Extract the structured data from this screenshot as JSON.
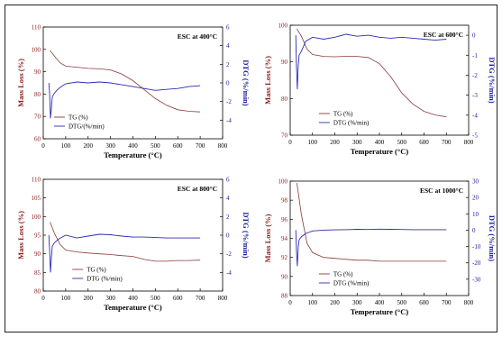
{
  "colors": {
    "tg": "#8b3a3a",
    "dtg": "#2b2bb8",
    "axis_left": "#8b1a1a",
    "axis_right": "#1a1aa0",
    "frame": "#000000"
  },
  "chart_data": [
    {
      "type": "line",
      "annotation": "ESC at 400°C",
      "xlabel": "Temperature (°C)",
      "ylabel": "Mass Loss (%)",
      "y2label": "DTG (%/min)",
      "xlim": [
        0,
        800
      ],
      "xticks": [
        0,
        100,
        200,
        300,
        400,
        500,
        600,
        700,
        800
      ],
      "ylim": [
        60,
        110
      ],
      "yticks": [
        60,
        70,
        80,
        90,
        100,
        110
      ],
      "y2lim": [
        -6,
        6
      ],
      "y2ticks": [
        -4,
        -2,
        0,
        2,
        4,
        6
      ],
      "legend": {
        "position": "bottom-left",
        "entries": [
          "TG (%)",
          "DTG/(%/min)"
        ]
      },
      "series": [
        {
          "name": "TG (%)",
          "axis": "left",
          "x": [
            30,
            50,
            75,
            100,
            150,
            200,
            250,
            300,
            350,
            400,
            450,
            500,
            550,
            600,
            650,
            700
          ],
          "y": [
            99.5,
            97,
            94,
            92.5,
            92,
            91.5,
            91.3,
            90.8,
            89,
            86,
            82,
            78,
            75,
            73,
            72.3,
            72
          ]
        },
        {
          "name": "DTG/(%/min)",
          "axis": "right",
          "x": [
            25,
            28,
            32,
            36,
            40,
            50,
            60,
            80,
            100,
            150,
            200,
            250,
            300,
            350,
            400,
            450,
            500,
            550,
            600,
            650,
            700
          ],
          "y": [
            0,
            -1,
            -3.8,
            -2.8,
            -1.5,
            -1.1,
            -0.8,
            -0.4,
            -0.1,
            0.1,
            0,
            0.1,
            0,
            -0.2,
            -0.4,
            -0.6,
            -0.8,
            -0.7,
            -0.6,
            -0.4,
            -0.3
          ]
        }
      ]
    },
    {
      "type": "line",
      "annotation": "ESC at 600°C",
      "xlabel": "Temperature (°C)",
      "ylabel": "Mass Loss (%)",
      "y2label": "DTG (%/min)",
      "xlim": [
        0,
        800
      ],
      "xticks": [
        0,
        100,
        200,
        300,
        400,
        500,
        600,
        700,
        800
      ],
      "ylim": [
        70,
        100
      ],
      "yticks": [
        70,
        80,
        90,
        100
      ],
      "y2lim": [
        -5,
        0.5
      ],
      "y2ticks": [
        -5,
        -4,
        -3,
        -2,
        -1,
        0
      ],
      "legend": {
        "position": "bottom-center",
        "entries": [
          "TG (%)",
          "DTG (%/min)"
        ]
      },
      "series": [
        {
          "name": "TG (%)",
          "axis": "left",
          "x": [
            30,
            50,
            75,
            100,
            150,
            200,
            250,
            300,
            350,
            400,
            450,
            500,
            550,
            600,
            650,
            700
          ],
          "y": [
            99,
            97,
            93.5,
            92,
            91.5,
            91.4,
            91.5,
            91.5,
            91.2,
            89.5,
            86,
            81.5,
            78.5,
            76.5,
            75.5,
            75
          ]
        },
        {
          "name": "DTG (%/min)",
          "axis": "right",
          "x": [
            25,
            28,
            32,
            36,
            40,
            50,
            70,
            100,
            150,
            200,
            250,
            300,
            350,
            400,
            450,
            500,
            550,
            600,
            650,
            700
          ],
          "y": [
            0,
            -1.5,
            -2.7,
            -1.5,
            -1,
            -0.8,
            -0.3,
            -0.1,
            -0.2,
            -0.1,
            0.05,
            -0.05,
            0,
            -0.1,
            -0.15,
            -0.1,
            -0.15,
            -0.2,
            -0.25,
            -0.2
          ]
        }
      ]
    },
    {
      "type": "line",
      "annotation": "ESC at 800°C",
      "xlabel": "Temperature (°C)",
      "ylabel": "Mass Loss (%)",
      "y2label": "DTG (%/min)",
      "xlim": [
        0,
        800
      ],
      "xticks": [
        0,
        100,
        200,
        300,
        400,
        500,
        600,
        700,
        800
      ],
      "ylim": [
        80,
        110
      ],
      "yticks": [
        80,
        85,
        90,
        95,
        100,
        105,
        110
      ],
      "y2lim": [
        -6,
        6
      ],
      "y2ticks": [
        -4,
        -2,
        0,
        2,
        4,
        6
      ],
      "legend": {
        "position": "bottom-center",
        "entries": [
          "TG (%)",
          "DTG (%/min)"
        ]
      },
      "series": [
        {
          "name": "TG (%)",
          "axis": "left",
          "x": [
            30,
            50,
            75,
            100,
            150,
            200,
            250,
            300,
            350,
            400,
            450,
            500,
            550,
            600,
            650,
            700
          ],
          "y": [
            98.5,
            95.5,
            92.5,
            91,
            90.5,
            90.2,
            90,
            89.8,
            89.5,
            89.3,
            88.5,
            88,
            88,
            88.2,
            88.2,
            88.3
          ]
        },
        {
          "name": "DTG (%/min)",
          "axis": "right",
          "x": [
            25,
            28,
            32,
            36,
            40,
            50,
            70,
            100,
            150,
            200,
            250,
            300,
            350,
            400,
            450,
            500,
            550,
            600,
            650,
            700
          ],
          "y": [
            0,
            -1.5,
            -4,
            -2.5,
            -1.2,
            -0.8,
            -0.4,
            0,
            -0.3,
            -0.1,
            0.1,
            0.05,
            -0.1,
            -0.2,
            -0.2,
            -0.25,
            -0.3,
            -0.3,
            -0.3,
            -0.3
          ]
        }
      ]
    },
    {
      "type": "line",
      "annotation": "ESC at 1000°C",
      "xlabel": "Temperature (°C)",
      "ylabel": "Mass Loss (%)",
      "y2label": "DTG (%/min)",
      "xlim": [
        0,
        800
      ],
      "xticks": [
        0,
        100,
        200,
        300,
        400,
        500,
        600,
        700,
        800
      ],
      "ylim": [
        88,
        100
      ],
      "yticks": [
        88,
        90,
        92,
        94,
        96,
        98,
        100
      ],
      "y2lim": [
        -40,
        30
      ],
      "y2ticks": [
        -30,
        -20,
        -10,
        0,
        10,
        20,
        30
      ],
      "legend": {
        "position": "bottom-center",
        "entries": [
          "TG (%)",
          "DTG (%/min)"
        ]
      },
      "series": [
        {
          "name": "TG (%)",
          "axis": "left",
          "x": [
            30,
            50,
            75,
            100,
            150,
            200,
            250,
            300,
            350,
            400,
            450,
            500,
            550,
            600,
            650,
            700
          ],
          "y": [
            99.8,
            96.5,
            93.5,
            92.5,
            92,
            91.9,
            91.8,
            91.7,
            91.7,
            91.6,
            91.6,
            91.6,
            91.6,
            91.6,
            91.6,
            91.6
          ]
        },
        {
          "name": "DTG (%/min)",
          "axis": "right",
          "x": [
            25,
            28,
            32,
            36,
            40,
            50,
            70,
            100,
            150,
            200,
            250,
            300,
            350,
            400,
            450,
            500,
            550,
            600,
            650,
            700
          ],
          "y": [
            0,
            -12,
            -22,
            -10,
            -6,
            -4,
            -2,
            -0.5,
            0,
            0.2,
            0.3,
            0.5,
            0.4,
            0.6,
            0.5,
            0.4,
            0.3,
            0.3,
            0.3,
            0.3
          ]
        }
      ]
    }
  ]
}
